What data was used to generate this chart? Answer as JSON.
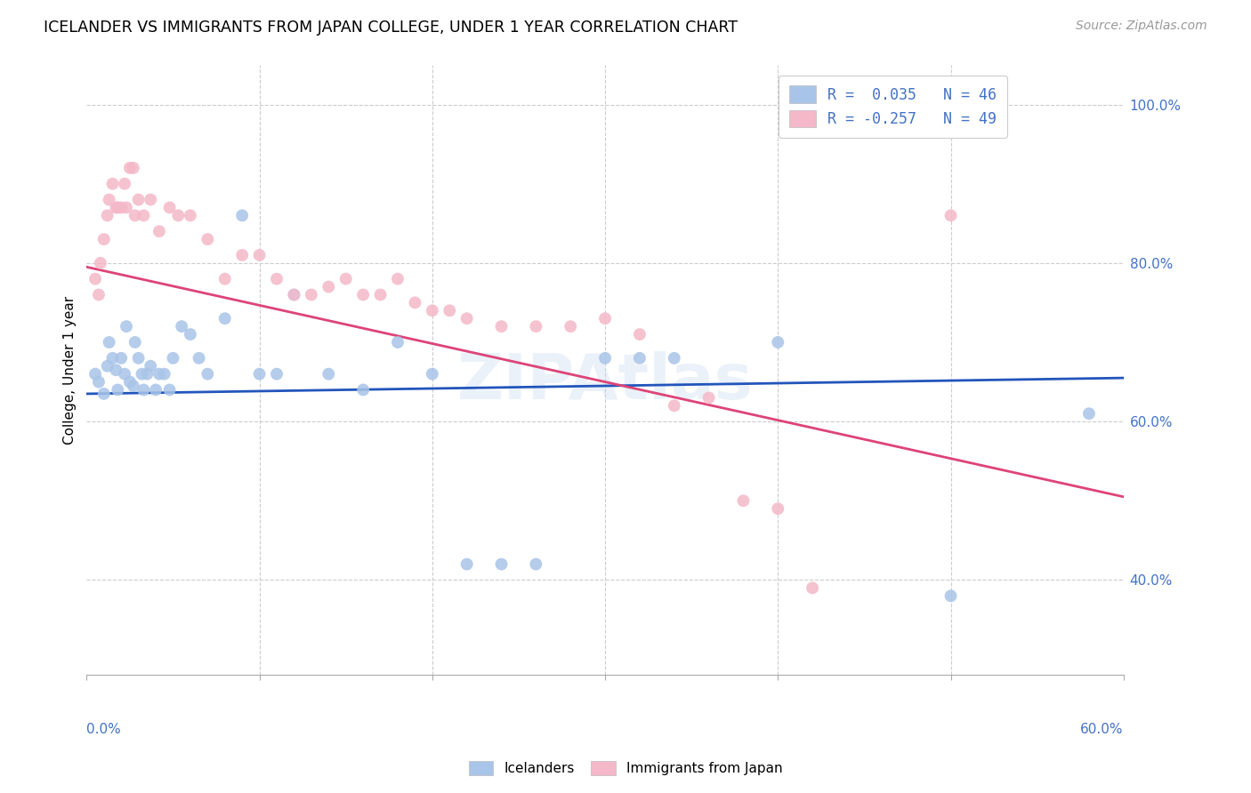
{
  "title": "ICELANDER VS IMMIGRANTS FROM JAPAN COLLEGE, UNDER 1 YEAR CORRELATION CHART",
  "source": "Source: ZipAtlas.com",
  "ylabel": "College, Under 1 year",
  "right_yticks": [
    "40.0%",
    "60.0%",
    "80.0%",
    "100.0%"
  ],
  "right_ytick_vals": [
    0.4,
    0.6,
    0.8,
    1.0
  ],
  "xlim": [
    0.0,
    0.6
  ],
  "ylim": [
    0.28,
    1.05
  ],
  "watermark": "ZIPAtlas",
  "blue_color": "#a8c4e8",
  "pink_color": "#f4b8c8",
  "blue_line_color": "#2255bb",
  "pink_line_color": "#dd4477",
  "icelanders_x": [
    0.005,
    0.007,
    0.01,
    0.012,
    0.013,
    0.015,
    0.017,
    0.018,
    0.02,
    0.022,
    0.023,
    0.025,
    0.027,
    0.028,
    0.03,
    0.032,
    0.033,
    0.035,
    0.037,
    0.04,
    0.042,
    0.045,
    0.048,
    0.05,
    0.055,
    0.06,
    0.065,
    0.07,
    0.08,
    0.09,
    0.1,
    0.11,
    0.12,
    0.14,
    0.16,
    0.18,
    0.2,
    0.22,
    0.24,
    0.26,
    0.3,
    0.32,
    0.34,
    0.4,
    0.5,
    0.58
  ],
  "icelanders_y": [
    0.66,
    0.65,
    0.635,
    0.67,
    0.7,
    0.68,
    0.665,
    0.64,
    0.68,
    0.66,
    0.72,
    0.65,
    0.645,
    0.7,
    0.68,
    0.66,
    0.64,
    0.66,
    0.67,
    0.64,
    0.66,
    0.66,
    0.64,
    0.68,
    0.72,
    0.71,
    0.68,
    0.66,
    0.73,
    0.86,
    0.66,
    0.66,
    0.76,
    0.66,
    0.64,
    0.7,
    0.66,
    0.42,
    0.42,
    0.42,
    0.68,
    0.68,
    0.68,
    0.7,
    0.38,
    0.61
  ],
  "japan_x": [
    0.005,
    0.007,
    0.008,
    0.01,
    0.012,
    0.013,
    0.015,
    0.017,
    0.018,
    0.02,
    0.022,
    0.023,
    0.025,
    0.027,
    0.028,
    0.03,
    0.033,
    0.037,
    0.042,
    0.048,
    0.053,
    0.06,
    0.07,
    0.08,
    0.09,
    0.1,
    0.11,
    0.12,
    0.13,
    0.14,
    0.15,
    0.16,
    0.17,
    0.18,
    0.19,
    0.2,
    0.21,
    0.22,
    0.24,
    0.26,
    0.28,
    0.3,
    0.32,
    0.34,
    0.36,
    0.38,
    0.4,
    0.42,
    0.5
  ],
  "japan_y": [
    0.78,
    0.76,
    0.8,
    0.83,
    0.86,
    0.88,
    0.9,
    0.87,
    0.87,
    0.87,
    0.9,
    0.87,
    0.92,
    0.92,
    0.86,
    0.88,
    0.86,
    0.88,
    0.84,
    0.87,
    0.86,
    0.86,
    0.83,
    0.78,
    0.81,
    0.81,
    0.78,
    0.76,
    0.76,
    0.77,
    0.78,
    0.76,
    0.76,
    0.78,
    0.75,
    0.74,
    0.74,
    0.73,
    0.72,
    0.72,
    0.72,
    0.73,
    0.71,
    0.62,
    0.63,
    0.5,
    0.49,
    0.39,
    0.86
  ]
}
